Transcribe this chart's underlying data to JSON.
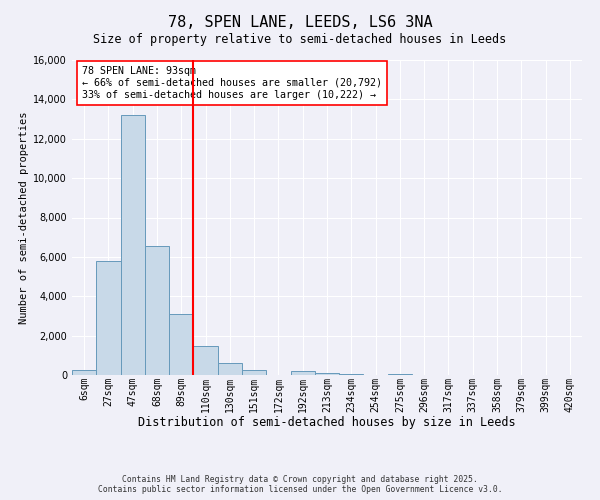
{
  "title": "78, SPEN LANE, LEEDS, LS6 3NA",
  "subtitle": "Size of property relative to semi-detached houses in Leeds",
  "xlabel": "Distribution of semi-detached houses by size in Leeds",
  "ylabel": "Number of semi-detached properties",
  "bar_labels": [
    "6sqm",
    "27sqm",
    "47sqm",
    "68sqm",
    "89sqm",
    "110sqm",
    "130sqm",
    "151sqm",
    "172sqm",
    "192sqm",
    "213sqm",
    "234sqm",
    "254sqm",
    "275sqm",
    "296sqm",
    "317sqm",
    "337sqm",
    "358sqm",
    "379sqm",
    "399sqm",
    "420sqm"
  ],
  "bar_values": [
    250,
    5800,
    13200,
    6550,
    3100,
    1450,
    600,
    250,
    0,
    200,
    100,
    50,
    0,
    50,
    0,
    0,
    0,
    0,
    0,
    0,
    0
  ],
  "bar_color": "#c8d9e8",
  "bar_edge_color": "#6699bb",
  "vline_x_idx": 4,
  "vline_color": "red",
  "annotation_box_text": "78 SPEN LANE: 93sqm\n← 66% of semi-detached houses are smaller (20,792)\n33% of semi-detached houses are larger (10,222) →",
  "ylim": [
    0,
    16000
  ],
  "yticks": [
    0,
    2000,
    4000,
    6000,
    8000,
    10000,
    12000,
    14000,
    16000
  ],
  "bg_color": "#f0f0f8",
  "footer_line1": "Contains HM Land Registry data © Crown copyright and database right 2025.",
  "footer_line2": "Contains public sector information licensed under the Open Government Licence v3.0.",
  "title_fontsize": 11,
  "subtitle_fontsize": 8.5,
  "xlabel_fontsize": 8.5,
  "ylabel_fontsize": 7.5,
  "tick_fontsize": 7,
  "annot_fontsize": 7.2,
  "footer_fontsize": 5.8
}
